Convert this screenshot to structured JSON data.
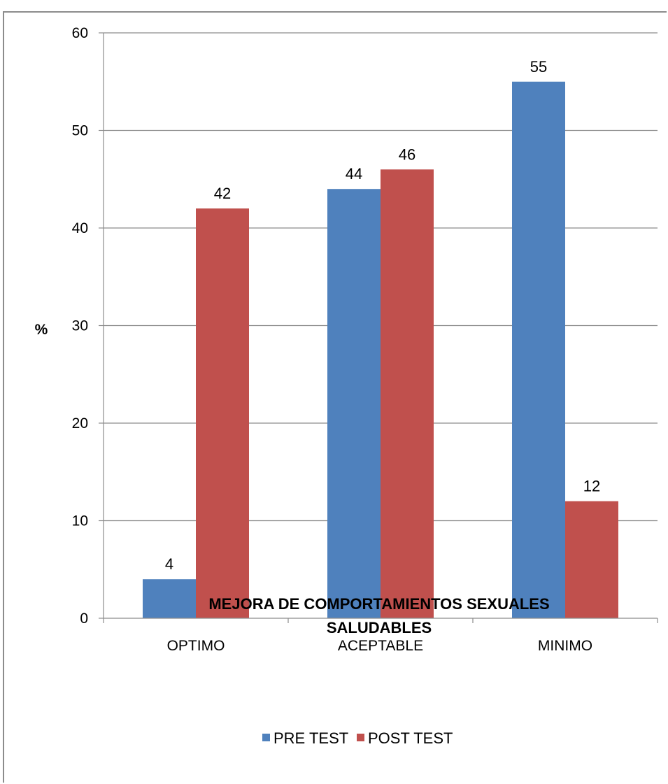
{
  "chart_data": {
    "type": "bar",
    "categories": [
      "OPTIMO",
      "ACEPTABLE",
      "MINIMO"
    ],
    "series": [
      {
        "name": "PRE TEST",
        "values": [
          4,
          44,
          55
        ],
        "color": "#4f81bd"
      },
      {
        "name": "POST TEST",
        "values": [
          42,
          46,
          12
        ],
        "color": "#c0504d"
      }
    ],
    "title": "",
    "xlabel_lines": [
      "MEJORA DE COMPORTAMIENTOS SEXUALES",
      "SALUDABLES"
    ],
    "ylabel": "%",
    "ylim": [
      0,
      60
    ],
    "yticks": [
      0,
      10,
      20,
      30,
      40,
      50,
      60
    ],
    "grid": true,
    "legend_position": "bottom"
  }
}
